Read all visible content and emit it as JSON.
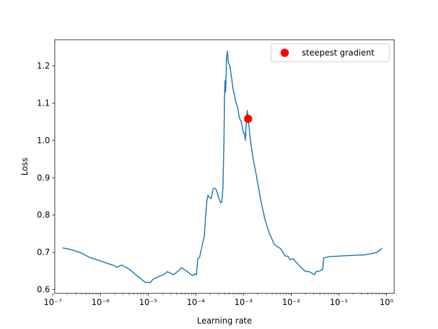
{
  "chart_data": {
    "type": "line",
    "xlabel": "Learning rate",
    "ylabel": "Loss",
    "xscale": "log",
    "xlim": [
      1e-07,
      1.0
    ],
    "ylim": [
      0.59,
      1.27
    ],
    "x_ticks": [
      {
        "value": 1e-07,
        "label": "10⁻⁷"
      },
      {
        "value": 1e-06,
        "label": "10⁻⁶"
      },
      {
        "value": 1e-05,
        "label": "10⁻⁵"
      },
      {
        "value": 0.0001,
        "label": "10⁻⁴"
      },
      {
        "value": 0.001,
        "label": "10⁻³"
      },
      {
        "value": 0.01,
        "label": "10⁻²"
      },
      {
        "value": 0.1,
        "label": "10⁻¹"
      },
      {
        "value": 1,
        "label": "10⁰"
      }
    ],
    "y_ticks": [
      {
        "value": 0.6,
        "label": "0.6"
      },
      {
        "value": 0.7,
        "label": "0.7"
      },
      {
        "value": 0.8,
        "label": "0.8"
      },
      {
        "value": 0.9,
        "label": "0.9"
      },
      {
        "value": 1.0,
        "label": "1.0"
      },
      {
        "value": 1.1,
        "label": "1.1"
      },
      {
        "value": 1.2,
        "label": "1.2"
      }
    ],
    "grid": false,
    "legend": {
      "placement": "top-right",
      "entries": [
        {
          "label": "steepest gradient",
          "color": "#ff0000",
          "marker": "circle"
        }
      ]
    },
    "colors": {
      "line": "#1f77b4",
      "marker": "#ff0000"
    },
    "series": [
      {
        "x": [
          1.6e-07,
          2.5e-07,
          4e-07,
          6e-07,
          1e-06,
          1.5e-06,
          1.9e-06,
          2.2e-06,
          2.8e-06,
          4e-06,
          6e-06,
          7.6e-06,
          8.5e-06,
          1.1e-05,
          1.3e-05,
          1.6e-05,
          1.8e-05,
          2.1e-05,
          2.5e-05,
          3e-05,
          3.4e-05,
          4.2e-05,
          5e-05,
          6e-05,
          7e-05,
          8e-05,
          8.8e-05,
          9.5e-05,
          0.000103,
          0.00011,
          0.00012,
          0.00013,
          0.00014,
          0.00015,
          0.00017,
          0.00018,
          0.00019,
          0.00021,
          0.00023,
          0.00025,
          0.00027,
          0.0003,
          0.00033,
          0.00035,
          0.00037,
          0.00039,
          0.0004,
          0.00041,
          0.00042,
          0.00043,
          0.00044,
          0.00046,
          0.00048,
          0.00052,
          0.00056,
          0.0006,
          0.00065,
          0.0007,
          0.00075,
          0.00082,
          0.0009,
          0.001,
          0.00105,
          0.0011,
          0.00115,
          0.0012,
          0.0013,
          0.0014,
          0.0016,
          0.0019,
          0.0023,
          0.0028,
          0.0035,
          0.0045,
          0.006,
          0.0075,
          0.0085,
          0.0095,
          0.011,
          0.013,
          0.016,
          0.02,
          0.024,
          0.028,
          0.031,
          0.033,
          0.04,
          0.046,
          0.048,
          0.06,
          0.1,
          0.2,
          0.32,
          0.42,
          0.5,
          0.6,
          0.7,
          0.8
        ],
        "y": [
          0.712,
          0.707,
          0.698,
          0.686,
          0.677,
          0.669,
          0.665,
          0.66,
          0.666,
          0.655,
          0.636,
          0.626,
          0.62,
          0.619,
          0.629,
          0.634,
          0.637,
          0.64,
          0.648,
          0.644,
          0.64,
          0.649,
          0.659,
          0.652,
          0.646,
          0.64,
          0.638,
          0.642,
          0.64,
          0.683,
          0.687,
          0.706,
          0.727,
          0.741,
          0.838,
          0.853,
          0.848,
          0.844,
          0.87,
          0.872,
          0.868,
          0.848,
          0.833,
          0.835,
          0.87,
          1.0,
          1.12,
          1.16,
          1.13,
          1.16,
          1.22,
          1.24,
          1.21,
          1.2,
          1.17,
          1.14,
          1.12,
          1.1,
          1.09,
          1.06,
          1.05,
          1.02,
          1.02,
          1.0,
          1.06,
          1.08,
          1.04,
          1.0,
          0.95,
          0.9,
          0.84,
          0.79,
          0.75,
          0.72,
          0.71,
          0.69,
          0.69,
          0.68,
          0.683,
          0.672,
          0.66,
          0.649,
          0.648,
          0.643,
          0.64,
          0.648,
          0.65,
          0.654,
          0.685,
          0.688,
          0.69,
          0.692,
          0.693,
          0.695,
          0.697,
          0.699,
          0.704,
          0.712
        ]
      },
      {
        "label": "steepest gradient",
        "type": "scatter",
        "x": [
          0.00125
        ],
        "y": [
          1.058
        ]
      }
    ]
  }
}
